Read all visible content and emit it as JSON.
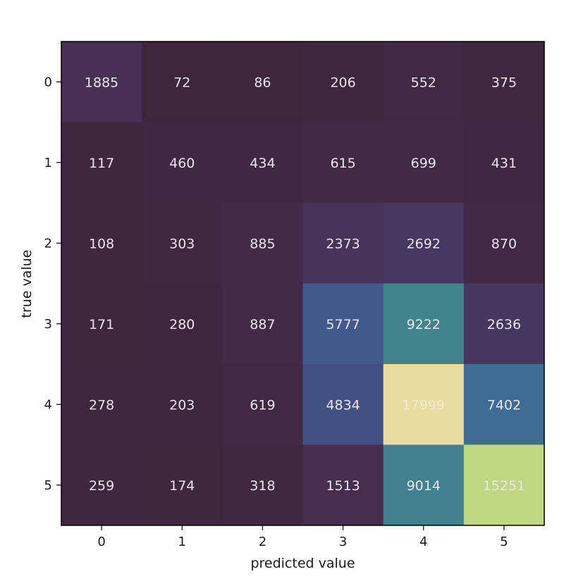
{
  "chart_data": {
    "type": "heatmap",
    "title": "",
    "xlabel": "predicted value",
    "ylabel": "true value",
    "x_categories": [
      "0",
      "1",
      "2",
      "3",
      "4",
      "5"
    ],
    "y_categories": [
      "0",
      "1",
      "2",
      "3",
      "4",
      "5"
    ],
    "values": [
      [
        1885,
        72,
        86,
        206,
        552,
        375
      ],
      [
        117,
        460,
        434,
        615,
        699,
        431
      ],
      [
        108,
        303,
        885,
        2373,
        2692,
        870
      ],
      [
        171,
        280,
        887,
        5777,
        9222,
        2636
      ],
      [
        278,
        203,
        619,
        4834,
        17999,
        7402
      ],
      [
        259,
        174,
        318,
        1513,
        9014,
        15251
      ]
    ],
    "colormap": "viridis-muted",
    "value_range": [
      0,
      17999
    ],
    "colorbar": false,
    "grid": false
  }
}
